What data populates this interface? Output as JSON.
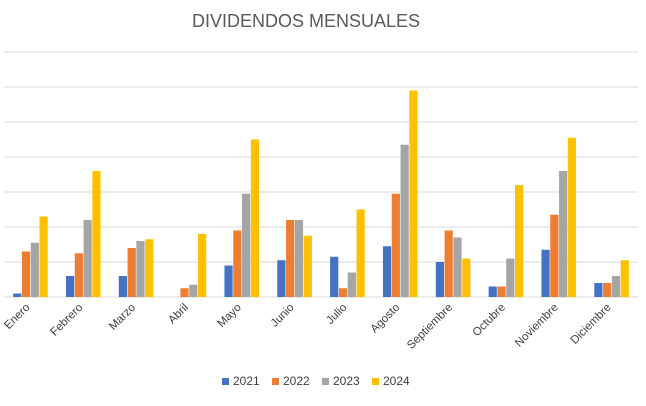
{
  "chart_data": {
    "type": "bar",
    "title": "DIVIDENDOS MENSUALES",
    "xlabel": "",
    "ylabel": "",
    "ylim": [
      0,
      7
    ],
    "grid": true,
    "legend_position": "bottom",
    "categories": [
      "Enero",
      "Febrero",
      "Marzo",
      "Abril",
      "Mayo",
      "Junio",
      "Julio",
      "Agosto",
      "Septiembre",
      "Octubre",
      "Noviembre",
      "Diciembre"
    ],
    "series": [
      {
        "name": "2021",
        "color": "#4472c4",
        "values": [
          0.1,
          0.6,
          0.6,
          0.0,
          0.9,
          1.05,
          1.15,
          1.45,
          1.0,
          0.3,
          1.35,
          0.4
        ]
      },
      {
        "name": "2022",
        "color": "#ed7d31",
        "values": [
          1.3,
          1.25,
          1.4,
          0.25,
          1.9,
          2.2,
          0.25,
          2.95,
          1.9,
          0.3,
          2.35,
          0.4
        ]
      },
      {
        "name": "2023",
        "color": "#a5a5a5",
        "values": [
          1.55,
          2.2,
          1.6,
          0.35,
          2.95,
          2.2,
          0.7,
          4.35,
          1.7,
          1.1,
          3.6,
          0.6
        ]
      },
      {
        "name": "2024",
        "color": "#ffc000",
        "values": [
          2.3,
          3.6,
          1.65,
          1.8,
          4.5,
          1.75,
          2.5,
          5.9,
          1.1,
          3.2,
          4.55,
          1.05
        ]
      }
    ]
  }
}
